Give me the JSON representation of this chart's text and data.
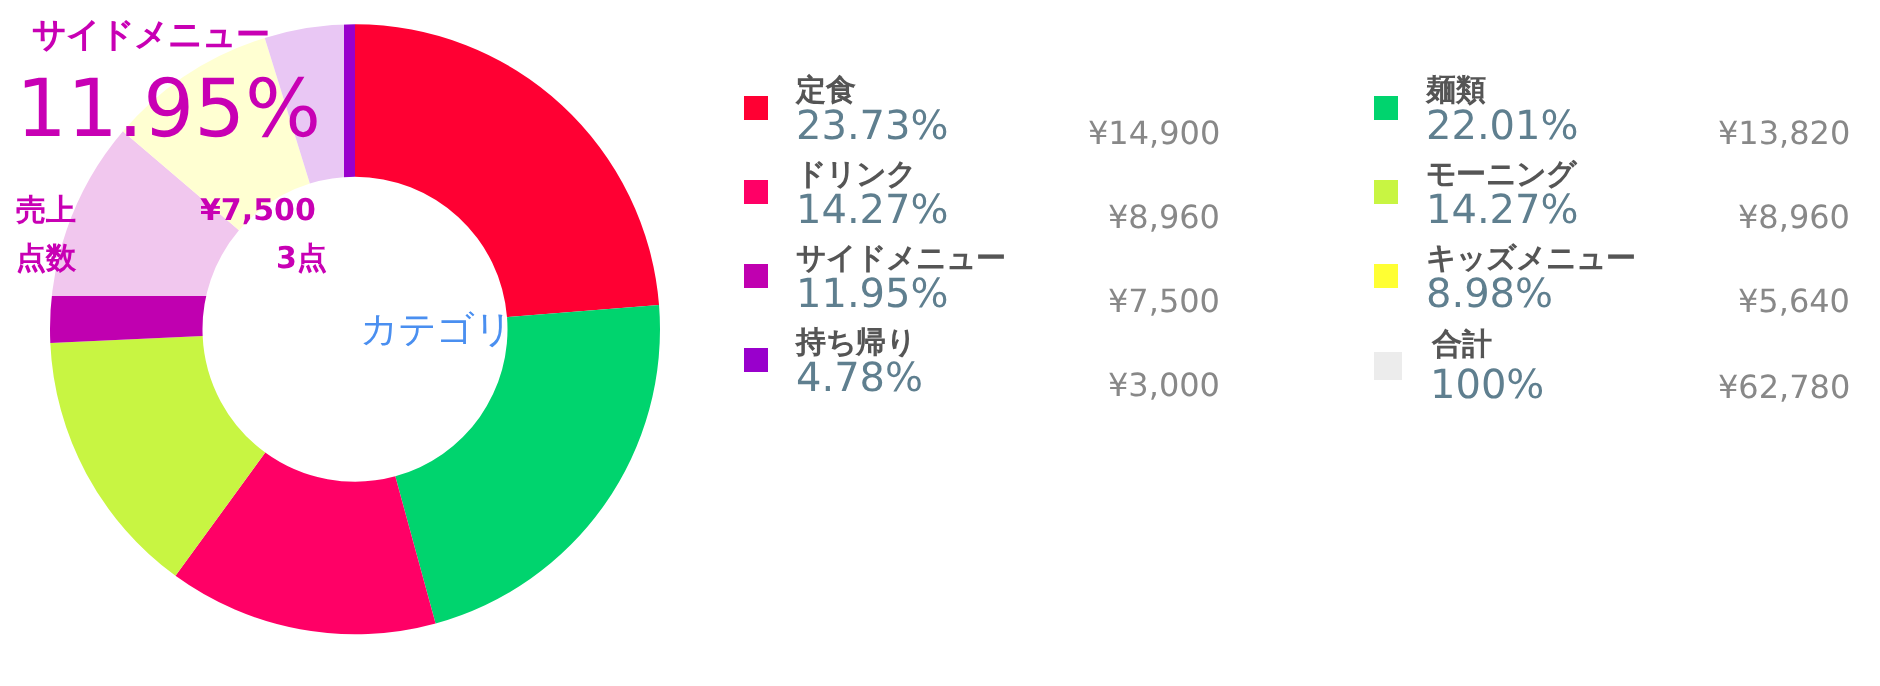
{
  "chart_data": {
    "type": "donut",
    "title": "カテゴリ",
    "categories": [
      "定食",
      "麺類",
      "ドリンク",
      "モーニング",
      "サイドメニュー",
      "キッズメニュー",
      "持ち帰り"
    ],
    "values": [
      23.73,
      22.01,
      14.27,
      14.27,
      11.95,
      8.98,
      4.78
    ],
    "value_labels": [
      "23.73%",
      "22.01%",
      "14.27%",
      "14.27%",
      "11.95%",
      "8.98%",
      "4.78%"
    ],
    "colors": [
      "#ff0033",
      "#00d46e",
      "#ff0066",
      "#c8f542",
      "#c000b0",
      "#ffff33",
      "#9900cc"
    ],
    "legend": "right",
    "annotations": [
      "¥14,900",
      "¥13,820",
      "¥8,960",
      "¥8,960",
      "¥7,500",
      "¥5,640",
      "¥3,000",
      "合計",
      "100%",
      "¥62,780",
      "サイドメニュー",
      "11.95%",
      "売上",
      "¥7,500",
      "点数",
      "3点"
    ]
  }
}
